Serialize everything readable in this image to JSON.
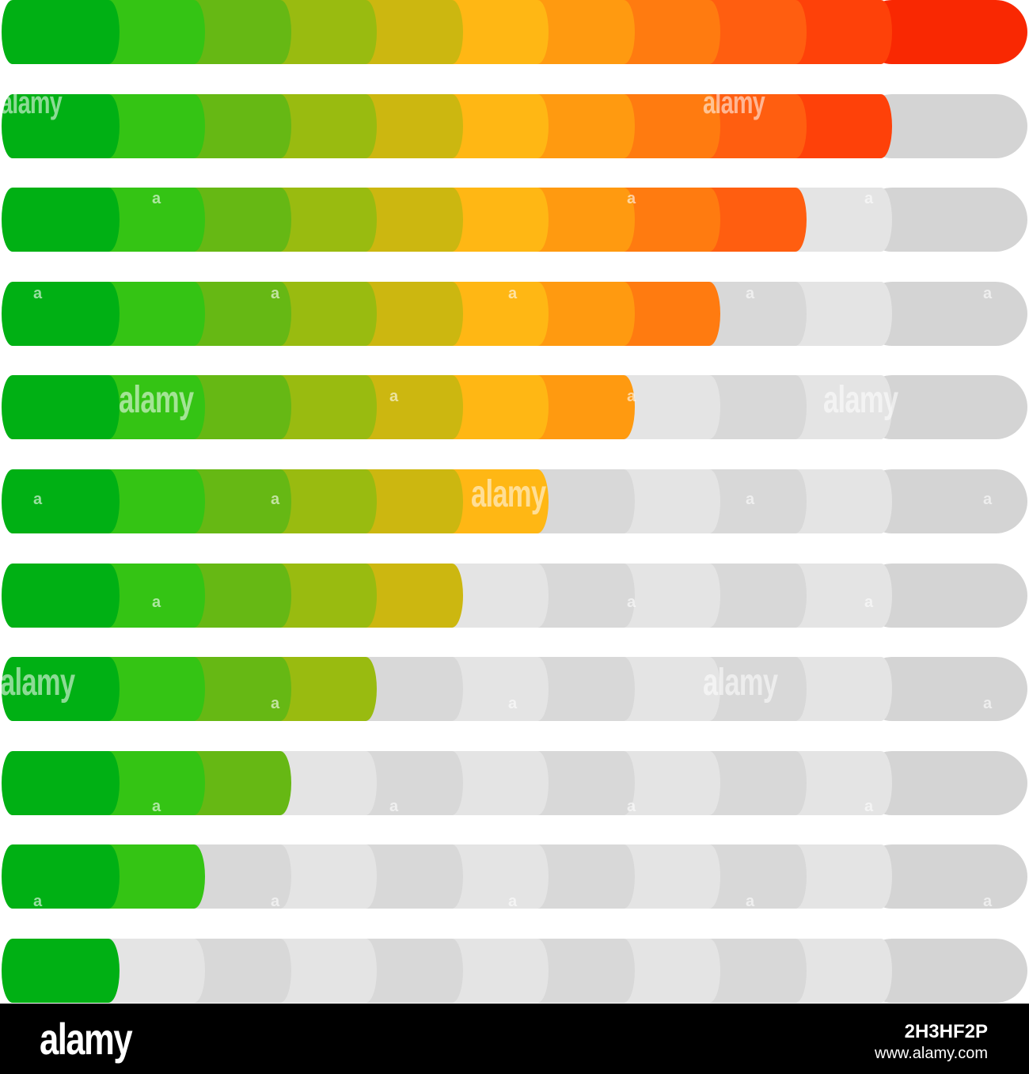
{
  "meters": {
    "segment_count": 11,
    "segment_colors": [
      "#00b014",
      "#34c414",
      "#66b814",
      "#99bb10",
      "#ccb710",
      "#ffb714",
      "#ff9a10",
      "#ff7b10",
      "#ff5e10",
      "#fe4109",
      "#f92802"
    ],
    "empty_color": "#d8d8d8",
    "empty_color_alt": "#e4e4e4",
    "levels": [
      {
        "filled": 11,
        "of": 11
      },
      {
        "filled": 10,
        "of": 11
      },
      {
        "filled": 9,
        "of": 11
      },
      {
        "filled": 8,
        "of": 11
      },
      {
        "filled": 7,
        "of": 11
      },
      {
        "filled": 6,
        "of": 11
      },
      {
        "filled": 5,
        "of": 11
      },
      {
        "filled": 4,
        "of": 11
      },
      {
        "filled": 3,
        "of": 11
      },
      {
        "filled": 2,
        "of": 11
      },
      {
        "filled": 1,
        "of": 11
      }
    ]
  },
  "watermark": {
    "text": "alamy",
    "short": "a"
  },
  "footer": {
    "logo": "alamy",
    "image_id": "2H3HF2P",
    "url": "www.alamy.com"
  }
}
